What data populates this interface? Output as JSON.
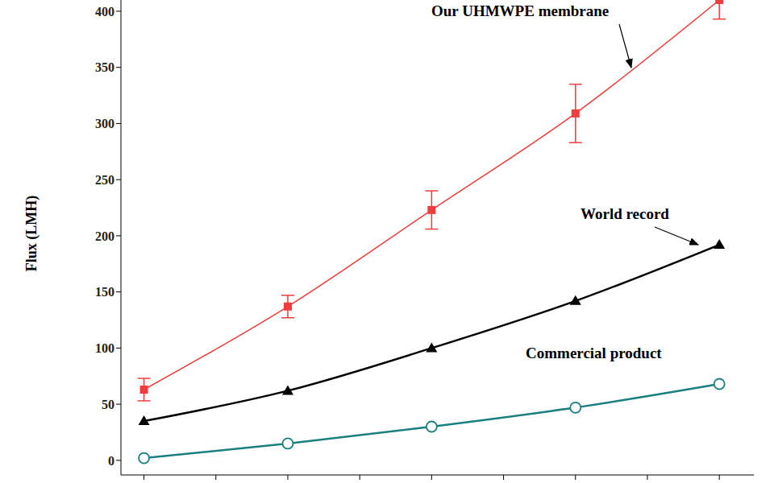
{
  "chart_data": {
    "type": "line",
    "y_label": "Flux (LMH)",
    "x": [
      1,
      2,
      3,
      4,
      5
    ],
    "xlim": [
      0.84,
      5.24
    ],
    "xticks": [
      1,
      1.5,
      2,
      2.5,
      3,
      3.5,
      4,
      4.5,
      5
    ],
    "ylim": [
      -13,
      410
    ],
    "yticks": [
      0,
      50,
      100,
      150,
      200,
      250,
      300,
      350,
      400
    ],
    "tick_labels": "y",
    "grid": false,
    "series": [
      {
        "name": "Our UHMWPE membrane",
        "color": "#f03c3c",
        "marker": "square",
        "line_style": "solid",
        "values": [
          63,
          137,
          223,
          309,
          410
        ],
        "errors": [
          10,
          10,
          17,
          26,
          17
        ]
      },
      {
        "name": "World record",
        "color": "#000000",
        "marker": "triangle",
        "line_style": "solid",
        "values": [
          35,
          62,
          100,
          142,
          192
        ]
      },
      {
        "name": "Commercial product",
        "color": "#1a7f7f",
        "marker": "open_circle",
        "line_style": "solid",
        "values": [
          2,
          15,
          30,
          47,
          68
        ]
      }
    ]
  }
}
